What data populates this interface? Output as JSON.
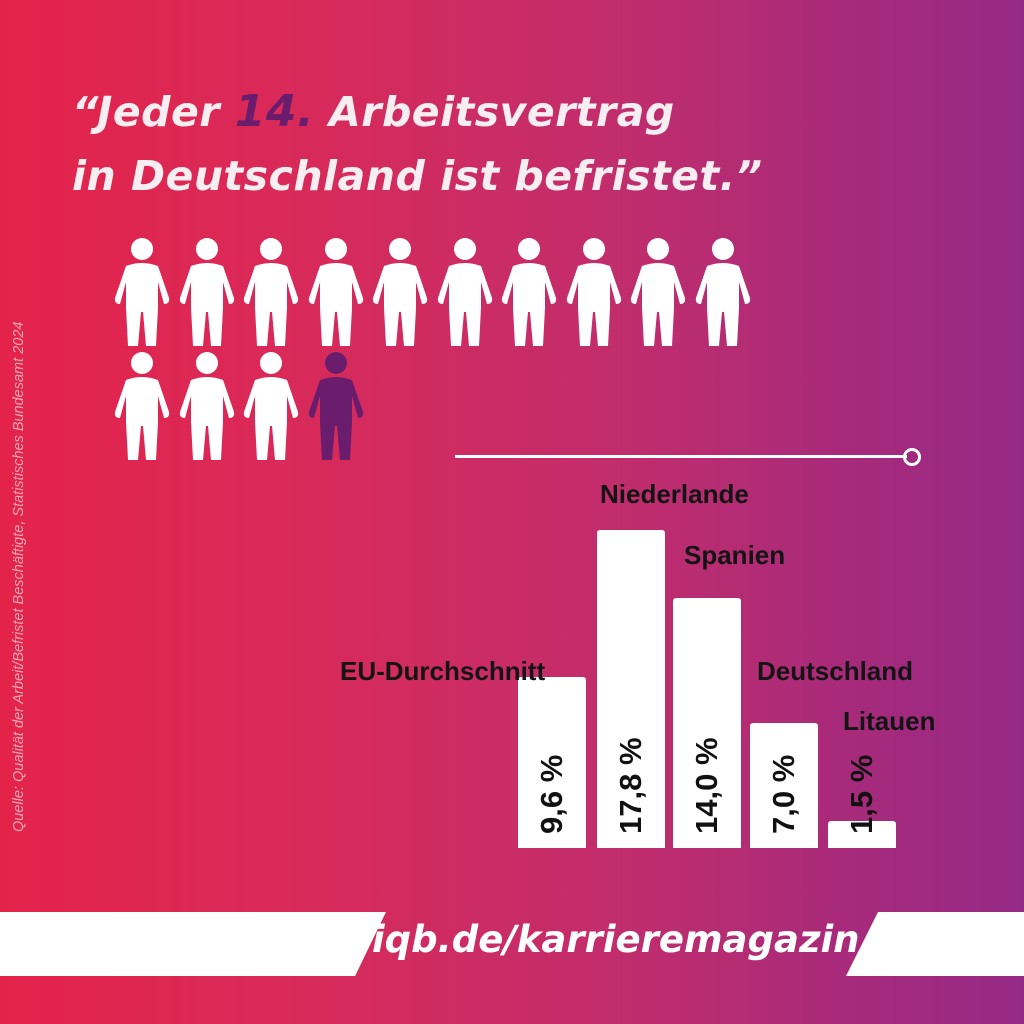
{
  "headline": {
    "part1": "“Jeder ",
    "highlight": "14.",
    "part2": " Arbeitsvertrag",
    "line2": "in Deutschland ist befristet.”"
  },
  "pictogram": {
    "total": 14,
    "highlighted_index": 14,
    "icon": "person-icon",
    "colors": {
      "normal": "#ffffff",
      "highlight": "#6a1d6c"
    }
  },
  "source": "Quelle: Qualität der Arbeit/Befristet Beschäftigte, Statistisches Bundesamt  2024",
  "chart_data": {
    "type": "bar",
    "categories": [
      "EU-Durchschnitt",
      "Niederlande",
      "Spanien",
      "Deutschland",
      "Litauen"
    ],
    "values": [
      9.6,
      17.8,
      14.0,
      7.0,
      1.5
    ],
    "value_labels": [
      "9,6 %",
      "17,8 %",
      "14,0 %",
      "7,0 %",
      "1,5 %"
    ],
    "unit": "%",
    "ylim": [
      0,
      17.8
    ],
    "grid": false,
    "bar_color": "#ffffff"
  },
  "footer": {
    "url": "iqb.de/karrieremagazin"
  }
}
